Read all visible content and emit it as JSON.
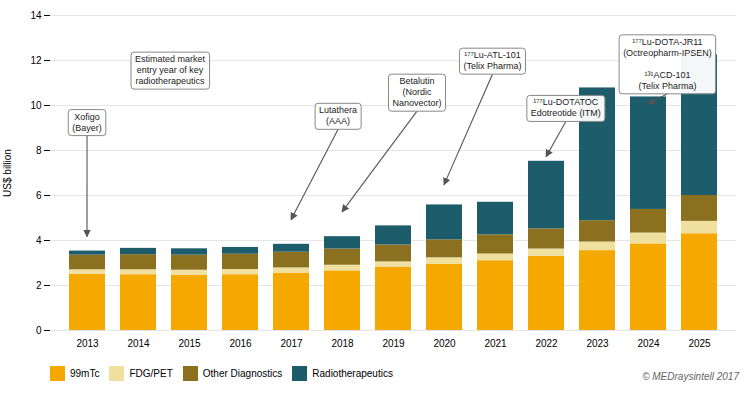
{
  "chart_data": {
    "type": "bar",
    "stacked": true,
    "categories": [
      "2013",
      "2014",
      "2015",
      "2016",
      "2017",
      "2018",
      "2019",
      "2020",
      "2021",
      "2022",
      "2023",
      "2024",
      "2025"
    ],
    "series": [
      {
        "name": "99mTc",
        "color": "#F5A800",
        "values": [
          2.5,
          2.48,
          2.46,
          2.48,
          2.55,
          2.65,
          2.8,
          2.95,
          3.1,
          3.3,
          3.55,
          3.85,
          4.3
        ]
      },
      {
        "name": "FDG/PET",
        "color": "#F0E0A0",
        "values": [
          0.2,
          0.22,
          0.22,
          0.23,
          0.23,
          0.25,
          0.25,
          0.28,
          0.3,
          0.32,
          0.38,
          0.48,
          0.55
        ]
      },
      {
        "name": "Other Diagnostics",
        "color": "#8B7020",
        "values": [
          0.65,
          0.67,
          0.67,
          0.68,
          0.7,
          0.72,
          0.75,
          0.8,
          0.85,
          0.9,
          0.95,
          1.05,
          1.15
        ]
      },
      {
        "name": "Radiotherapeutics",
        "color": "#1D5C6B",
        "values": [
          0.18,
          0.28,
          0.28,
          0.3,
          0.35,
          0.55,
          0.85,
          1.55,
          1.45,
          3.0,
          5.9,
          5.0,
          6.25
        ]
      }
    ],
    "ylabel": "US$ billion",
    "ylim": [
      0,
      14
    ],
    "yticks": [
      0,
      2,
      4,
      6,
      8,
      10,
      12,
      14
    ],
    "grid": true,
    "legend": "bottom",
    "annotations": [
      {
        "text": "Xofigo\n(Bayer)",
        "x": "2013",
        "y": 4.15
      },
      {
        "text": "Estimated market\nentry year of key\nradiotherapeutics"
      },
      {
        "text": "Lutathera\n(AAA)",
        "x": "2017",
        "y": 4.9
      },
      {
        "text": "Betalutin\n(Nordic\nNanovector)",
        "x": "2018",
        "y": 5.25
      },
      {
        "text": "¹⁷⁷Lu-ATL-101\n(Telix Pharma)",
        "x": "2020",
        "y": 6.45
      },
      {
        "text": "¹⁷⁷Lu-DOTATOC\nEdotreotide (ITM)",
        "x": "2022",
        "y": 7.7
      },
      {
        "text": "¹⁷⁷Lu-DOTA-JR11\n(Octreopharm-IPSEN)\n\n¹³¹ACD-101\n(Telix Pharma)",
        "x": "2024",
        "y": 10.05
      }
    ],
    "caption": "© MEDraysintell 2017"
  }
}
